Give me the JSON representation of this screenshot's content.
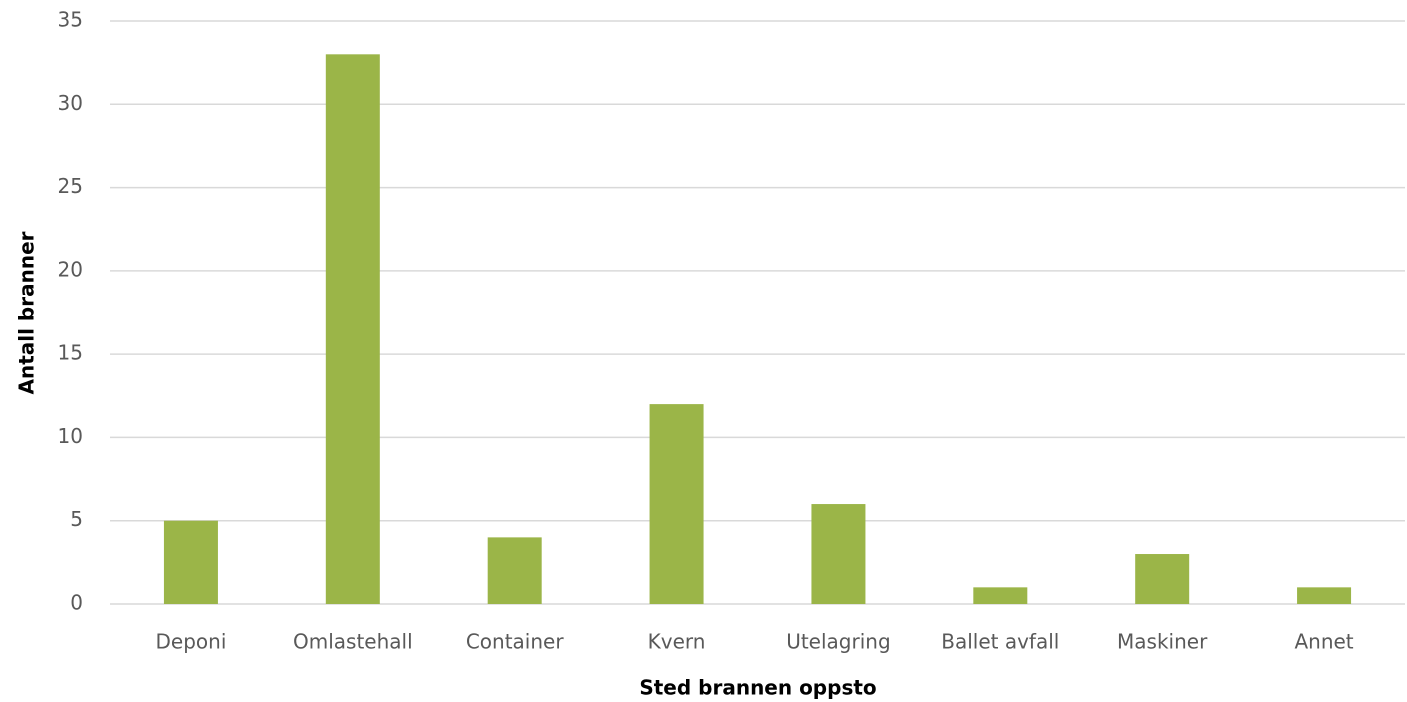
{
  "chart_data": {
    "type": "bar",
    "x_label": "Sted brannen oppsto",
    "y_label": "Antall branner",
    "categories": [
      "Deponi",
      "Omlastehall",
      "Container",
      "Kvern",
      "Utelagring",
      "Ballet avfall",
      "Maskiner",
      "Annet"
    ],
    "values": [
      5,
      33,
      4,
      12,
      6,
      1,
      3,
      1
    ],
    "color": "#9bb548",
    "ylim": [
      0,
      35
    ],
    "yticks": [
      0,
      5,
      10,
      15,
      20,
      25,
      30,
      35
    ],
    "grid": true
  }
}
